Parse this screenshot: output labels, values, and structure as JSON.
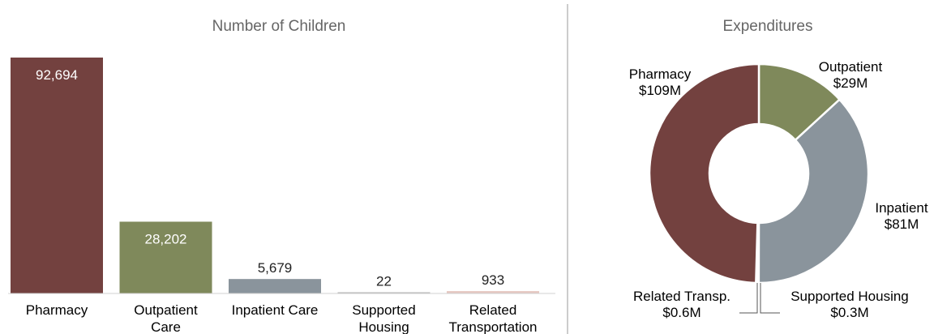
{
  "colors": {
    "pharmacy": "#73413f",
    "outpatient": "#7f895b",
    "inpatient": "#8a949c",
    "supported_housing": "#b5b5b5",
    "related_transportation": "#e6c8c2",
    "title_text": "#666666",
    "label_text": "#000000",
    "divider": "#999999"
  },
  "chart_data": [
    {
      "type": "bar",
      "title": "Number of Children",
      "categories": [
        "Pharmacy",
        "Outpatient Care",
        "Inpatient Care",
        "Supported Housing",
        "Related Transportation"
      ],
      "category_lines": [
        [
          "Pharmacy"
        ],
        [
          "Outpatient",
          "Care"
        ],
        [
          "Inpatient Care"
        ],
        [
          "Supported",
          "Housing"
        ],
        [
          "Related",
          "Transportation"
        ]
      ],
      "values": [
        92694,
        28202,
        5679,
        22,
        933
      ],
      "value_labels": [
        "92,694",
        "28,202",
        "5,679",
        "22",
        "933"
      ],
      "ylim": [
        0,
        92694
      ],
      "grid": false,
      "legend": "none"
    },
    {
      "type": "pie",
      "style": "donut",
      "title": "Expenditures",
      "slices": [
        {
          "name": "Outpatient",
          "value_label": "$29M",
          "value": 29
        },
        {
          "name": "Inpatient",
          "value_label": "$81M",
          "value": 81
        },
        {
          "name": "Supported Housing",
          "value_label": "$0.3M",
          "value": 0.3
        },
        {
          "name": "Related Transp.",
          "value_label": "$0.6M",
          "value": 0.6
        },
        {
          "name": "Pharmacy",
          "value_label": "$109M",
          "value": 109
        }
      ],
      "legend": "none"
    }
  ]
}
